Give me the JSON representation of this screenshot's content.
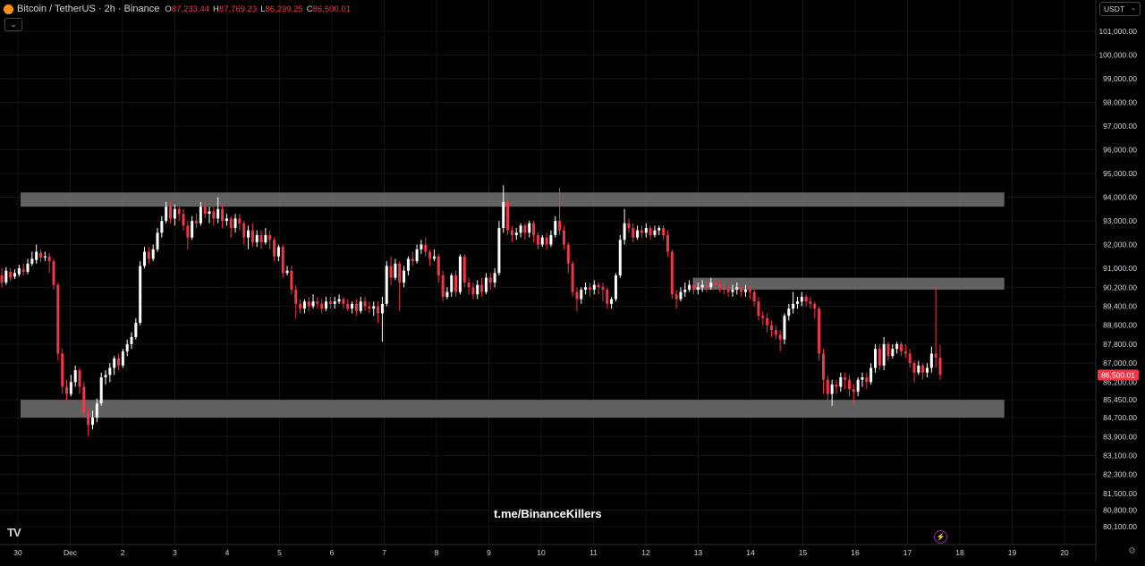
{
  "header": {
    "symbol": "Bitcoin / TetherUS · 2h · Binance",
    "open_label": "O",
    "open": "87,233.44",
    "high_label": "H",
    "high": "87,769.23",
    "low_label": "L",
    "low": "86,299.25",
    "close_label": "C",
    "close": "86,500.01",
    "collapse_icon": "chevron-down-icon"
  },
  "currency": {
    "label": "USDT",
    "icon": "chevron-down-icon"
  },
  "watermark": "t.me/BinanceKillers",
  "icons": {
    "logo": "tradingview-logo-icon",
    "alert": "lightning-icon",
    "settings": "gear-icon"
  },
  "logo_text": "TV",
  "colors": {
    "background": "#000000",
    "up": "#ffffff",
    "down": "#f23645",
    "zone": "#6b6b6b",
    "axis_text": "#d1d4dc"
  },
  "chart_data": {
    "type": "candlestick",
    "timeframe": "2h",
    "y_ticks": [
      "101,000.00",
      "100,000.00",
      "99,000.00",
      "98,000.00",
      "97,000.00",
      "96,000.00",
      "95,000.00",
      "94,000.00",
      "93,000.00",
      "92,000.00",
      "91,000.00",
      "90,200.00",
      "89,400.00",
      "88,600.00",
      "87,800.00",
      "87,000.00",
      "86,200.00",
      "85,450.00",
      "84,700.00",
      "83,900.00",
      "83,100.00",
      "82,300.00",
      "81,500.00",
      "80,800.00",
      "80,100.00"
    ],
    "x_ticks": [
      "30",
      "Dec",
      "2",
      "3",
      "4",
      "5",
      "6",
      "7",
      "8",
      "9",
      "10",
      "11",
      "12",
      "13",
      "14",
      "15",
      "16",
      "17",
      "18",
      "19",
      "20"
    ],
    "last_price": "86,500.01",
    "zones": [
      {
        "from_day": 0.05,
        "to_day": 18.85,
        "low": 93600,
        "high": 94200
      },
      {
        "from_day": 12.9,
        "to_day": 18.85,
        "low": 90100,
        "high": 90600
      },
      {
        "from_day": 0.05,
        "to_day": 18.85,
        "low": 84700,
        "high": 85450
      }
    ],
    "candles": [
      [
        90700,
        90400,
        91000,
        90200
      ],
      [
        90400,
        90900,
        91050,
        90300
      ],
      [
        90850,
        90600,
        91000,
        90450
      ],
      [
        90650,
        90800,
        90950,
        90550
      ],
      [
        90750,
        91000,
        91150,
        90650
      ],
      [
        90950,
        90850,
        91200,
        90700
      ],
      [
        90850,
        91200,
        91400,
        90750
      ],
      [
        91200,
        91400,
        91700,
        91100
      ],
      [
        91350,
        91700,
        92000,
        91200
      ],
      [
        91650,
        91450,
        91800,
        91250
      ],
      [
        91450,
        91500,
        91700,
        91300
      ],
      [
        91500,
        91300,
        91650,
        90800
      ],
      [
        91300,
        90300,
        91400,
        90100
      ],
      [
        90300,
        87400,
        90400,
        87100
      ],
      [
        87400,
        86000,
        87600,
        85700
      ],
      [
        86000,
        85700,
        86300,
        85400
      ],
      [
        85700,
        86200,
        86500,
        85600
      ],
      [
        86200,
        86700,
        86900,
        86000
      ],
      [
        86700,
        86000,
        86800,
        85700
      ],
      [
        86000,
        84900,
        86200,
        84700
      ],
      [
        84900,
        84400,
        85100,
        83900
      ],
      [
        84400,
        84700,
        85000,
        84200
      ],
      [
        84700,
        85300,
        85500,
        84500
      ],
      [
        85300,
        86400,
        86600,
        85200
      ],
      [
        86400,
        86500,
        86700,
        86100
      ],
      [
        86500,
        86800,
        87000,
        86200
      ],
      [
        86800,
        87200,
        87300,
        86500
      ],
      [
        87200,
        86900,
        87400,
        86700
      ],
      [
        86900,
        87500,
        87600,
        86800
      ],
      [
        87500,
        87800,
        88000,
        87300
      ],
      [
        87800,
        88100,
        88300,
        87600
      ],
      [
        88100,
        88700,
        88900,
        88000
      ],
      [
        88700,
        91100,
        91300,
        88600
      ],
      [
        91100,
        91700,
        91900,
        91000
      ],
      [
        91700,
        91400,
        91900,
        91200
      ],
      [
        91400,
        91800,
        92000,
        91300
      ],
      [
        91800,
        92500,
        92700,
        91700
      ],
      [
        92500,
        93000,
        93200,
        92300
      ],
      [
        93000,
        93600,
        93800,
        92900
      ],
      [
        93600,
        93100,
        93800,
        92900
      ],
      [
        93100,
        93500,
        93700,
        92800
      ],
      [
        93500,
        93300,
        93600,
        93000
      ],
      [
        93300,
        92800,
        93500,
        92600
      ],
      [
        92800,
        92300,
        93000,
        91800
      ],
      [
        92300,
        93000,
        93200,
        92200
      ],
      [
        93000,
        92900,
        93300,
        92700
      ],
      [
        92900,
        93600,
        93800,
        92800
      ],
      [
        93600,
        93300,
        93800,
        93100
      ],
      [
        93300,
        93400,
        93600,
        92900
      ],
      [
        93400,
        93100,
        93600,
        92800
      ],
      [
        93100,
        93500,
        94000,
        92900
      ],
      [
        93500,
        93000,
        93700,
        92700
      ],
      [
        93000,
        93100,
        93300,
        92800
      ],
      [
        93100,
        92700,
        93200,
        92300
      ],
      [
        92700,
        93100,
        93300,
        92500
      ],
      [
        93100,
        92900,
        93300,
        92600
      ],
      [
        92900,
        92300,
        93000,
        92000
      ],
      [
        92300,
        92600,
        92800,
        91800
      ],
      [
        92600,
        92100,
        92900,
        91900
      ],
      [
        92100,
        92400,
        92600,
        91900
      ],
      [
        92400,
        92100,
        92600,
        91800
      ],
      [
        92100,
        92400,
        92700,
        92000
      ],
      [
        92400,
        92200,
        92600,
        91800
      ],
      [
        92200,
        91500,
        92300,
        91300
      ],
      [
        91500,
        91900,
        92000,
        91300
      ],
      [
        91900,
        90800,
        92000,
        90600
      ],
      [
        90800,
        90900,
        91100,
        90700
      ],
      [
        90900,
        90100,
        91100,
        89900
      ],
      [
        90100,
        89500,
        90300,
        88900
      ],
      [
        89500,
        89300,
        89700,
        89100
      ],
      [
        89300,
        89600,
        89700,
        89100
      ],
      [
        89600,
        89400,
        89800,
        89200
      ],
      [
        89400,
        89600,
        89900,
        89300
      ],
      [
        89600,
        89500,
        89800,
        89300
      ],
      [
        89500,
        89300,
        89700,
        89100
      ],
      [
        89300,
        89600,
        89800,
        89200
      ],
      [
        89600,
        89500,
        89800,
        89300
      ],
      [
        89500,
        89600,
        89800,
        89300
      ],
      [
        89600,
        89700,
        89900,
        89500
      ],
      [
        89700,
        89500,
        89800,
        89300
      ],
      [
        89500,
        89300,
        89700,
        89200
      ],
      [
        89300,
        89500,
        89600,
        89100
      ],
      [
        89500,
        89200,
        89700,
        89000
      ],
      [
        89200,
        89600,
        89800,
        89100
      ],
      [
        89600,
        89400,
        89800,
        89200
      ],
      [
        89400,
        89300,
        89600,
        89100
      ],
      [
        89300,
        89400,
        89600,
        89000
      ],
      [
        89400,
        89100,
        89600,
        88700
      ],
      [
        89100,
        89500,
        89800,
        87900
      ],
      [
        89500,
        91100,
        91300,
        89400
      ],
      [
        91100,
        90600,
        91500,
        90300
      ],
      [
        90600,
        91200,
        91400,
        90500
      ],
      [
        91200,
        90400,
        91300,
        89200
      ],
      [
        90400,
        90900,
        91100,
        90200
      ],
      [
        90900,
        91400,
        91500,
        90700
      ],
      [
        91400,
        91300,
        91700,
        91100
      ],
      [
        91300,
        91800,
        92000,
        91200
      ],
      [
        91800,
        92000,
        92200,
        91600
      ],
      [
        92000,
        91700,
        92300,
        91500
      ],
      [
        91700,
        91400,
        91800,
        91100
      ],
      [
        91400,
        91500,
        91800,
        91300
      ],
      [
        91500,
        90700,
        91600,
        90400
      ],
      [
        90700,
        89800,
        90900,
        89600
      ],
      [
        89800,
        90000,
        90200,
        89700
      ],
      [
        90000,
        90700,
        90800,
        89800
      ],
      [
        90700,
        90000,
        90900,
        89800
      ],
      [
        90000,
        91500,
        91600,
        89900
      ],
      [
        91500,
        90400,
        91600,
        90200
      ],
      [
        90400,
        90200,
        90600,
        89900
      ],
      [
        90200,
        89900,
        90400,
        89700
      ],
      [
        89900,
        90300,
        90500,
        89700
      ],
      [
        90300,
        90000,
        90600,
        89800
      ],
      [
        90000,
        90600,
        90800,
        89900
      ],
      [
        90600,
        90400,
        90800,
        90100
      ],
      [
        90400,
        90800,
        91000,
        90200
      ],
      [
        90800,
        92700,
        93000,
        90700
      ],
      [
        92700,
        93800,
        94500,
        92500
      ],
      [
        93800,
        92600,
        93900,
        92400
      ],
      [
        92600,
        92400,
        92800,
        92100
      ],
      [
        92400,
        92500,
        92700,
        92200
      ],
      [
        92500,
        92800,
        92900,
        92300
      ],
      [
        92800,
        92500,
        92900,
        92200
      ],
      [
        92500,
        92900,
        93000,
        92300
      ],
      [
        92900,
        92400,
        93000,
        92100
      ],
      [
        92400,
        92000,
        92500,
        91800
      ],
      [
        92000,
        92300,
        92400,
        91900
      ],
      [
        92300,
        92000,
        92500,
        91800
      ],
      [
        92000,
        92400,
        92600,
        91900
      ],
      [
        92400,
        93000,
        93200,
        92300
      ],
      [
        93000,
        92600,
        94400,
        92400
      ],
      [
        92600,
        92000,
        92800,
        91800
      ],
      [
        92000,
        91200,
        92100,
        90800
      ],
      [
        91200,
        90000,
        91300,
        89800
      ],
      [
        90000,
        89700,
        90200,
        89200
      ],
      [
        89700,
        90100,
        90200,
        89500
      ],
      [
        90100,
        90200,
        90400,
        89900
      ],
      [
        90200,
        90100,
        90400,
        89800
      ],
      [
        90100,
        90300,
        90500,
        89900
      ],
      [
        90300,
        90200,
        90400,
        89900
      ],
      [
        90200,
        90100,
        90400,
        89600
      ],
      [
        90100,
        89500,
        90200,
        89300
      ],
      [
        89500,
        89700,
        89800,
        89300
      ],
      [
        89700,
        90700,
        90800,
        89600
      ],
      [
        90700,
        92200,
        92400,
        90600
      ],
      [
        92200,
        92900,
        93500,
        92000
      ],
      [
        92900,
        92700,
        93100,
        92500
      ],
      [
        92700,
        92300,
        92900,
        92100
      ],
      [
        92300,
        92600,
        92800,
        92200
      ],
      [
        92600,
        92500,
        92800,
        92300
      ],
      [
        92500,
        92700,
        92900,
        92300
      ],
      [
        92700,
        92400,
        92800,
        92200
      ],
      [
        92400,
        92600,
        92800,
        92300
      ],
      [
        92600,
        92700,
        92800,
        92400
      ],
      [
        92700,
        92400,
        92800,
        92200
      ],
      [
        92400,
        91700,
        92600,
        91500
      ],
      [
        91700,
        89900,
        91800,
        89700
      ],
      [
        89900,
        89700,
        90100,
        89300
      ],
      [
        89700,
        90000,
        90200,
        89600
      ],
      [
        90000,
        90100,
        90400,
        89800
      ],
      [
        90100,
        90300,
        90500,
        90000
      ],
      [
        90300,
        90100,
        90600,
        89900
      ],
      [
        90100,
        90200,
        90400,
        89900
      ],
      [
        90200,
        90300,
        90500,
        90000
      ],
      [
        90300,
        90200,
        90500,
        90000
      ],
      [
        90200,
        90400,
        90600,
        90100
      ],
      [
        90400,
        90300,
        90600,
        90100
      ],
      [
        90300,
        90200,
        90500,
        90000
      ],
      [
        90200,
        90100,
        90400,
        89900
      ],
      [
        90100,
        90000,
        90300,
        89800
      ],
      [
        90000,
        90100,
        90300,
        89800
      ],
      [
        90100,
        90200,
        90400,
        89900
      ],
      [
        90200,
        90000,
        90300,
        89800
      ],
      [
        90000,
        90100,
        90300,
        89800
      ],
      [
        90100,
        90000,
        90300,
        89700
      ],
      [
        90000,
        89600,
        90100,
        89400
      ],
      [
        89600,
        89000,
        89800,
        88800
      ],
      [
        89000,
        88900,
        89200,
        88600
      ],
      [
        88900,
        88600,
        89100,
        88300
      ],
      [
        88600,
        88400,
        88800,
        88100
      ],
      [
        88400,
        88200,
        88600,
        88000
      ],
      [
        88200,
        88000,
        88400,
        87500
      ],
      [
        88000,
        89000,
        89100,
        87800
      ],
      [
        89000,
        89300,
        89500,
        88800
      ],
      [
        89300,
        89500,
        90000,
        89100
      ],
      [
        89500,
        89600,
        89800,
        89300
      ],
      [
        89600,
        89800,
        90000,
        89400
      ],
      [
        89800,
        89600,
        89900,
        89400
      ],
      [
        89600,
        89500,
        89800,
        89300
      ],
      [
        89500,
        89300,
        89600,
        88900
      ],
      [
        89300,
        87400,
        89400,
        87100
      ],
      [
        87400,
        86300,
        87600,
        85700
      ],
      [
        86300,
        85700,
        86500,
        85400
      ],
      [
        85700,
        86100,
        86300,
        85200
      ],
      [
        86100,
        86000,
        86300,
        85700
      ],
      [
        86000,
        86400,
        86600,
        85800
      ],
      [
        86400,
        86300,
        86600,
        85900
      ],
      [
        86300,
        85900,
        86500,
        85600
      ],
      [
        85900,
        85800,
        86100,
        85300
      ],
      [
        85800,
        86300,
        86400,
        85600
      ],
      [
        86300,
        86400,
        86600,
        86000
      ],
      [
        86400,
        86200,
        86600,
        85900
      ],
      [
        86200,
        86800,
        87000,
        86100
      ],
      [
        86800,
        87600,
        87800,
        86600
      ],
      [
        87600,
        86900,
        87800,
        86700
      ],
      [
        86900,
        87800,
        88100,
        86700
      ],
      [
        87800,
        87300,
        87900,
        87100
      ],
      [
        87300,
        87600,
        87800,
        87200
      ],
      [
        87600,
        87800,
        87900,
        87400
      ],
      [
        87800,
        87500,
        87900,
        87300
      ],
      [
        87500,
        87400,
        87800,
        87200
      ],
      [
        87400,
        87000,
        87600,
        86800
      ],
      [
        87000,
        86600,
        87100,
        86200
      ],
      [
        86600,
        86900,
        87100,
        86500
      ],
      [
        86900,
        86600,
        87000,
        86300
      ],
      [
        86600,
        86800,
        87000,
        86400
      ],
      [
        86800,
        87400,
        87700,
        86600
      ],
      [
        87400,
        87233,
        90300,
        86800
      ],
      [
        87233,
        86500,
        87769,
        86299
      ]
    ]
  }
}
